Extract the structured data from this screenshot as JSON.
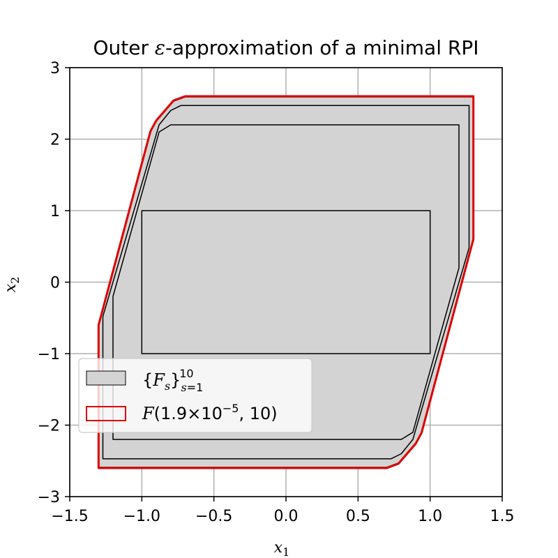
{
  "chart_data": {
    "type": "polygon",
    "title_parts": [
      "Outer ",
      "ε",
      "-approximation of a minimal RPI"
    ],
    "xlabel": "x",
    "xlabel_sub": "1",
    "ylabel": "x",
    "ylabel_sub": "2",
    "xlim": [
      -1.5,
      1.5
    ],
    "ylim": [
      -3,
      3
    ],
    "xticks": [
      -1.5,
      -1.0,
      -0.5,
      0.0,
      0.5,
      1.0,
      1.5
    ],
    "xtick_labels": [
      "−1.5",
      "−1.0",
      "−0.5",
      "0.0",
      "0.5",
      "1.0",
      "1.5"
    ],
    "yticks": [
      -3,
      -2,
      -1,
      0,
      1,
      2,
      3
    ],
    "ytick_labels": [
      "−3",
      "−2",
      "−1",
      "0",
      "1",
      "2",
      "3"
    ],
    "grid": true,
    "legend_position": "lower-left",
    "colors": {
      "fill": "#d3d3d3",
      "edge": "#000000",
      "outer": "#dd0000",
      "grid": "#b0b0b0"
    },
    "sets": [
      {
        "name": "F_1",
        "vertices": [
          [
            -1,
            -1
          ],
          [
            1,
            -1
          ],
          [
            1,
            1
          ],
          [
            -1,
            1
          ]
        ]
      },
      {
        "name": "F_2",
        "vertices": [
          [
            -1.2,
            -2.2
          ],
          [
            0.8,
            -2.2
          ],
          [
            0.88,
            -2.1
          ],
          [
            1.2,
            0.2
          ],
          [
            1.2,
            2.2
          ],
          [
            -0.8,
            2.2
          ],
          [
            -0.88,
            2.1
          ],
          [
            -1.2,
            -0.2
          ]
        ]
      },
      {
        "name": "F_3",
        "vertices": [
          [
            -1.27,
            -2.47
          ],
          [
            0.73,
            -2.47
          ],
          [
            0.8,
            -2.4
          ],
          [
            0.88,
            -2.2
          ],
          [
            1.27,
            0.48
          ],
          [
            1.27,
            2.47
          ],
          [
            -0.73,
            2.47
          ],
          [
            -0.8,
            2.4
          ],
          [
            -0.88,
            2.2
          ],
          [
            -1.27,
            -0.48
          ]
        ]
      },
      {
        "name": "F_10",
        "vertices": [
          [
            -1.3,
            -2.59
          ],
          [
            0.7,
            -2.59
          ],
          [
            0.78,
            -2.53
          ],
          [
            0.9,
            -2.25
          ],
          [
            0.94,
            -2.1
          ],
          [
            1.3,
            0.59
          ],
          [
            1.3,
            2.59
          ],
          [
            -0.7,
            2.59
          ],
          [
            -0.78,
            2.53
          ],
          [
            -0.9,
            2.25
          ],
          [
            -0.94,
            2.1
          ],
          [
            -1.3,
            -0.59
          ]
        ]
      }
    ],
    "outer_set": {
      "name": "F_outer",
      "vertices": [
        [
          -1.3,
          -2.6
        ],
        [
          0.7,
          -2.6
        ],
        [
          0.78,
          -2.54
        ],
        [
          0.9,
          -2.26
        ],
        [
          0.94,
          -2.11
        ],
        [
          1.3,
          0.6
        ],
        [
          1.3,
          2.6
        ],
        [
          -0.7,
          2.6
        ],
        [
          -0.78,
          2.54
        ],
        [
          -0.9,
          2.26
        ],
        [
          -0.94,
          2.11
        ],
        [
          -1.3,
          -0.6
        ]
      ]
    },
    "legend": [
      {
        "key": "family",
        "parts": [
          [
            "{",
            ""
          ],
          [
            "F",
            "italic"
          ],
          [
            "s",
            "sub-italic"
          ],
          [
            "}",
            ""
          ],
          [
            "s=1",
            "sub"
          ],
          [
            "10",
            "sup"
          ]
        ]
      },
      {
        "key": "outer",
        "parts": [
          [
            "F",
            "italic"
          ],
          [
            "(1.9",
            ""
          ],
          [
            "×",
            ""
          ],
          [
            "10",
            ""
          ],
          [
            "−5",
            "sup"
          ],
          [
            ", 10)",
            ""
          ]
        ]
      }
    ]
  }
}
